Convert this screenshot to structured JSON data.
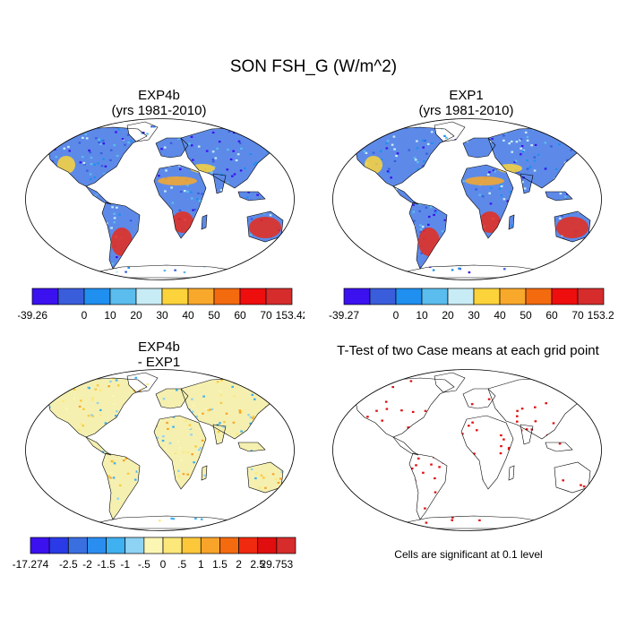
{
  "figure": {
    "title": "SON FSH_G (W/m^2)"
  },
  "panels": [
    {
      "title_line1": "EXP4b",
      "title_line2": "(yrs 1981-2010)",
      "colorbar": {
        "colors": [
          "#3b11f0",
          "#3a5ddc",
          "#1f8ff0",
          "#5bbcee",
          "#c8ecf6",
          "#fcd33a",
          "#f8a82a",
          "#f46a0f",
          "#ef0e0e",
          "#d62c2c"
        ],
        "labels": [
          "-39.26",
          "0",
          "10",
          "20",
          "30",
          "40",
          "50",
          "60",
          "70",
          "153.42"
        ]
      }
    },
    {
      "title_line1": "EXP1",
      "title_line2": "(yrs 1981-2010)",
      "colorbar": {
        "colors": [
          "#3b11f0",
          "#3a5ddc",
          "#1f8ff0",
          "#5bbcee",
          "#c8ecf6",
          "#fcd33a",
          "#f8a82a",
          "#f46a0f",
          "#ef0e0e",
          "#d62c2c"
        ],
        "labels": [
          "-39.27",
          "0",
          "10",
          "20",
          "30",
          "40",
          "50",
          "60",
          "70",
          "153.22"
        ]
      }
    },
    {
      "title_line1": "EXP4b",
      "title_line2": "- EXP1",
      "colorbar": {
        "colors": [
          "#3b11f0",
          "#2a3ae6",
          "#3a6fe0",
          "#2a8ef0",
          "#3fb0f0",
          "#8ed2f4",
          "#fcf6b4",
          "#fce87a",
          "#fcc83a",
          "#f8a42a",
          "#f46a0f",
          "#ef2a0e",
          "#e00e0e",
          "#d62c2c"
        ],
        "labels": [
          "-17.274",
          "-2.5",
          "-2",
          "-1.5",
          "-1",
          "-.5",
          "0",
          ".5",
          "1",
          "1.5",
          "2",
          "2.5",
          "29.753"
        ]
      }
    },
    {
      "title_line1": "T-Test of two Case means at each grid point",
      "note": "Cells are significant at 0.1 level"
    }
  ],
  "colors": {
    "land_base": "#5d8ae8",
    "ocean": "#ffffff",
    "outline": "#000000",
    "significant": "#e00e0e",
    "diff_base": "#f5f0b0"
  }
}
